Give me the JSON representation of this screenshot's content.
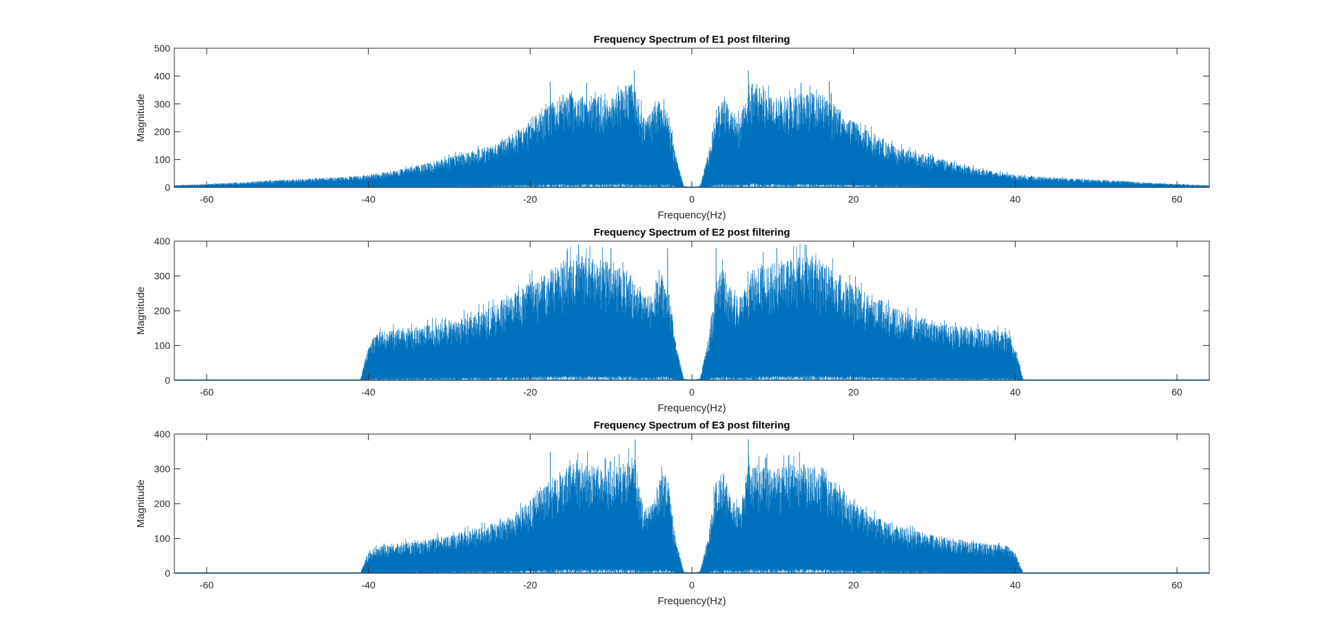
{
  "chart_data": [
    {
      "type": "area",
      "title": "Frequency Spectrum of E1 post filtering",
      "xlabel": "Frequency(Hz)",
      "ylabel": "Magnitude",
      "xlim": [
        -64,
        64
      ],
      "ylim": [
        0,
        500
      ],
      "xticks": [
        -60,
        -40,
        -20,
        0,
        20,
        40,
        60
      ],
      "yticks": [
        0,
        100,
        200,
        300,
        400,
        500
      ],
      "color": "#0072BD",
      "grid": false,
      "cutoff_hz": null,
      "envelope": {
        "x": [
          0,
          1,
          2,
          3,
          4,
          5,
          6,
          7,
          8,
          10,
          12,
          14,
          16,
          18,
          20,
          22,
          25,
          30,
          35,
          40,
          45,
          50,
          55,
          60,
          64
        ],
        "y": [
          0,
          5,
          120,
          280,
          330,
          270,
          250,
          370,
          380,
          320,
          330,
          340,
          340,
          290,
          240,
          200,
          150,
          110,
          70,
          45,
          35,
          28,
          20,
          12,
          8
        ]
      },
      "peaks": [
        {
          "x": -7.1,
          "y": 420
        },
        {
          "x": 7.0,
          "y": 420
        },
        {
          "x": -17.5,
          "y": 380
        },
        {
          "x": 17.0,
          "y": 380
        },
        {
          "x": -13.0,
          "y": 375
        },
        {
          "x": 13.5,
          "y": 375
        }
      ]
    },
    {
      "type": "area",
      "title": "Frequency Spectrum of E2 post filtering",
      "xlabel": "Frequency(Hz)",
      "ylabel": "Magnitude",
      "xlim": [
        -64,
        64
      ],
      "ylim": [
        0,
        400
      ],
      "xticks": [
        -60,
        -40,
        -20,
        0,
        20,
        40,
        60
      ],
      "yticks": [
        0,
        100,
        200,
        300,
        400
      ],
      "color": "#0072BD",
      "grid": false,
      "cutoff_hz": 41,
      "envelope": {
        "x": [
          0,
          1,
          2,
          3,
          4,
          5,
          6,
          8,
          10,
          12,
          14,
          16,
          18,
          20,
          22,
          25,
          30,
          35,
          39,
          40,
          41
        ],
        "y": [
          0,
          5,
          110,
          300,
          320,
          250,
          240,
          330,
          340,
          350,
          360,
          340,
          310,
          280,
          250,
          210,
          170,
          150,
          140,
          100,
          0
        ]
      },
      "peaks": [
        {
          "x": -14.0,
          "y": 390
        },
        {
          "x": 14.0,
          "y": 390
        },
        {
          "x": -3.0,
          "y": 380
        },
        {
          "x": 3.0,
          "y": 380
        },
        {
          "x": -10.0,
          "y": 380
        },
        {
          "x": 10.5,
          "y": 380
        }
      ]
    },
    {
      "type": "area",
      "title": "Frequency Spectrum of E3 post filtering",
      "xlabel": "Frequency(Hz)",
      "ylabel": "Magnitude",
      "xlim": [
        -64,
        64
      ],
      "ylim": [
        0,
        400
      ],
      "xticks": [
        -60,
        -40,
        -20,
        0,
        20,
        40,
        60
      ],
      "yticks": [
        0,
        100,
        200,
        300,
        400
      ],
      "color": "#0072BD",
      "grid": false,
      "cutoff_hz": 41,
      "envelope": {
        "x": [
          0,
          1,
          2,
          3,
          4,
          5,
          6,
          7,
          8,
          10,
          12,
          14,
          16,
          18,
          20,
          22,
          25,
          30,
          35,
          39,
          40,
          41
        ],
        "y": [
          0,
          5,
          100,
          280,
          290,
          200,
          190,
          330,
          320,
          300,
          310,
          320,
          300,
          260,
          210,
          170,
          140,
          110,
          90,
          80,
          60,
          0
        ]
      },
      "peaks": [
        {
          "x": -7.0,
          "y": 385
        },
        {
          "x": 7.0,
          "y": 385
        },
        {
          "x": -17.5,
          "y": 350
        },
        {
          "x": 12.0,
          "y": 340
        }
      ]
    }
  ]
}
